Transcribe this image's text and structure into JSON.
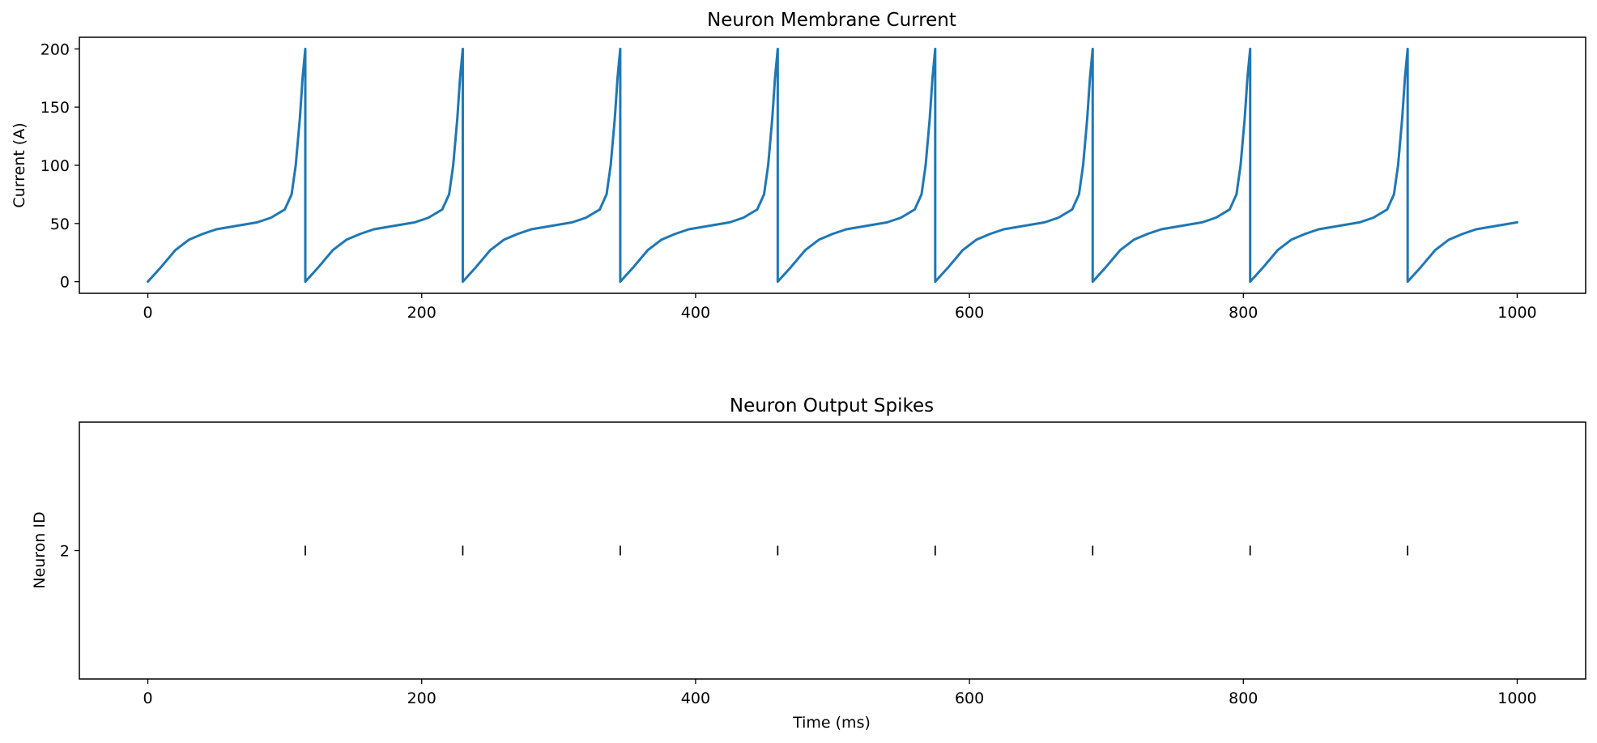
{
  "chart_data": [
    {
      "type": "line",
      "title": "Neuron Membrane Current",
      "xlabel": "",
      "ylabel": "Current (A)",
      "xlim": [
        -50,
        1050
      ],
      "ylim": [
        -10,
        210
      ],
      "x_ticks": [
        0,
        200,
        400,
        600,
        800,
        1000
      ],
      "y_ticks": [
        0,
        50,
        100,
        150,
        200
      ],
      "grid": false,
      "series": [
        {
          "color": "#1f77b4",
          "spike_times": [
            115,
            230,
            345,
            460,
            575,
            690,
            805,
            920
          ],
          "reset_value": 0,
          "peak_value": 200,
          "x_end": 1000,
          "points": [
            [
              0,
              0
            ],
            [
              10,
              13
            ],
            [
              20,
              27
            ],
            [
              30,
              36
            ],
            [
              40,
              41
            ],
            [
              50,
              45
            ],
            [
              60,
              47
            ],
            [
              70,
              49
            ],
            [
              80,
              51
            ],
            [
              90,
              55
            ],
            [
              100,
              62
            ],
            [
              105,
              75
            ],
            [
              108,
              100
            ],
            [
              111,
              140
            ],
            [
              113,
              175
            ],
            [
              115,
              200
            ]
          ]
        }
      ]
    },
    {
      "type": "scatter",
      "title": "Neuron Output Spikes",
      "xlabel": "Time (ms)",
      "ylabel": "Neuron ID",
      "xlim": [
        -50,
        1050
      ],
      "ylim": [
        1,
        3
      ],
      "x_ticks": [
        0,
        200,
        400,
        600,
        800,
        1000
      ],
      "y_ticks": [
        2
      ],
      "grid": false,
      "marker": "|",
      "color": "#000000",
      "series": [
        {
          "neuron_id": 2,
          "x": [
            115,
            230,
            345,
            460,
            575,
            690,
            805,
            920
          ]
        }
      ]
    }
  ]
}
